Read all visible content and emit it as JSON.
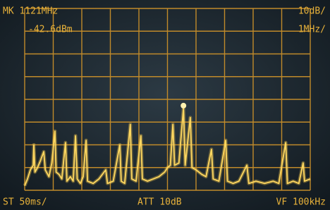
{
  "screen": {
    "marker_freq": "MK 1121MHz",
    "marker_level": "-42.6dBm",
    "ref_scale": "10dB/",
    "span_scale": "1MHz/",
    "sweep_time": "ST 50ms/",
    "attenuation": "ATT 10dB",
    "video_filter": "VF 100kHz"
  },
  "trace": {
    "x": [
      0,
      0.1,
      0.2,
      0.3,
      0.32,
      0.36,
      0.45,
      0.55,
      0.67,
      0.72,
      0.85,
      0.95,
      1.06,
      1.1,
      1.2,
      1.3,
      1.43,
      1.48,
      1.6,
      1.7,
      1.78,
      1.84,
      1.95,
      2.05,
      2.15,
      2.2,
      2.4,
      2.6,
      2.84,
      2.9,
      3.1,
      3.33,
      3.38,
      3.5,
      3.7,
      3.75,
      3.9,
      4.07,
      4.12,
      4.3,
      4.5,
      4.7,
      4.9,
      5.0,
      5.1,
      5.19,
      5.25,
      5.4,
      5.56,
      5.62,
      5.8,
      5.86,
      6.0,
      6.2,
      6.35,
      6.54,
      6.6,
      6.8,
      7.04,
      7.1,
      7.3,
      7.5,
      7.78,
      7.85,
      8.1,
      8.4,
      8.7,
      8.9,
      9.14,
      9.2,
      9.4,
      9.6,
      9.75,
      9.8,
      10
    ],
    "y": [
      0.2,
      0.5,
      0.9,
      1.1,
      2.0,
      0.8,
      1.0,
      1.3,
      1.7,
      0.9,
      0.6,
      1.2,
      2.6,
      0.8,
      0.7,
      0.5,
      2.1,
      0.4,
      0.6,
      0.4,
      2.4,
      0.5,
      0.3,
      0.6,
      2.2,
      0.4,
      0.3,
      0.5,
      0.9,
      0.3,
      0.4,
      2.0,
      0.4,
      0.3,
      2.9,
      0.5,
      0.4,
      2.4,
      0.5,
      0.4,
      0.5,
      0.6,
      0.8,
      1.0,
      1.1,
      2.9,
      1.1,
      1.2,
      3.6,
      1.1,
      3.2,
      1.0,
      0.9,
      0.7,
      0.6,
      1.8,
      0.5,
      0.4,
      2.2,
      0.4,
      0.3,
      0.4,
      1.1,
      0.3,
      0.4,
      0.3,
      0.4,
      0.3,
      2.1,
      0.3,
      0.4,
      0.3,
      1.2,
      0.4,
      0.5
    ]
  }
}
